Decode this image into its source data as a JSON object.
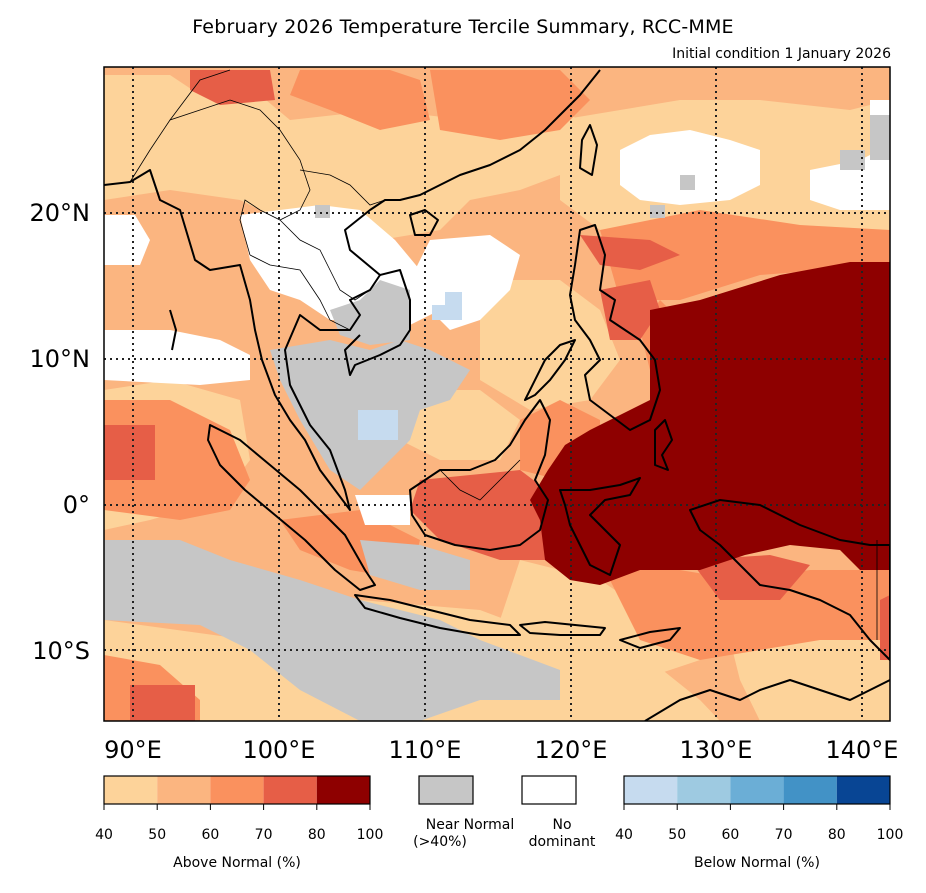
{
  "title": "February 2026 Temperature Tercile Summary, RCC-MME",
  "subtitle": "Initial condition 1 January 2026",
  "map": {
    "lon_range": [
      88,
      142
    ],
    "lat_range": [
      -15,
      30
    ],
    "lon_gridlines": [
      90,
      100,
      110,
      120,
      130,
      140
    ],
    "lat_gridlines": [
      -10,
      0,
      10,
      20
    ],
    "lon_labels": [
      "90°E",
      "100°E",
      "110°E",
      "120°E",
      "130°E",
      "140°E"
    ],
    "lat_labels": [
      "10°S",
      "0°",
      "10°N",
      "20°N"
    ]
  },
  "chart_data": {
    "type": "heatmap",
    "title": "February 2026 Temperature Tercile Summary, RCC-MME",
    "categories": [
      "Above Normal",
      "Near Normal (>40%)",
      "No dominant",
      "Below Normal"
    ],
    "regions_most_likely_above_normal_80_100": "Philippines, eastern Indonesia, New Guinea, western Pacific",
    "regions_near_normal": "southern Cambodia/Viet Nam, Gulf of Thailand, Java Sea, eastern Indian Ocean",
    "regions_no_dominant": "Thailand, Laos, Bay of Bengal coast, parts of South China Sea",
    "regions_below_normal_40_50": "small patches over Laos and Gulf of Thailand"
  },
  "legend": {
    "above": {
      "label": "Above Normal (%)",
      "ticks": [
        "40",
        "50",
        "60",
        "70",
        "80",
        "100"
      ],
      "colors": [
        "#fdd39a",
        "#fbb580",
        "#fa915e",
        "#e65e47",
        "#8e0000"
      ]
    },
    "near_normal": {
      "label_line1": "Near Normal",
      "label_line2": "(>40%)",
      "color": "#c6c6c6"
    },
    "no_dominant": {
      "label_line1": "No",
      "label_line2": "dominant",
      "color": "#ffffff"
    },
    "below": {
      "label": "Below Normal (%)",
      "ticks": [
        "40",
        "50",
        "60",
        "70",
        "80",
        "100"
      ],
      "colors": [
        "#c6dbef",
        "#9ecae1",
        "#6baed6",
        "#4292c6",
        "#084594"
      ]
    }
  },
  "colors": {
    "a1": "#fdd39a",
    "a2": "#fbb580",
    "a3": "#fa915e",
    "a4": "#e65e47",
    "a5": "#8e0000",
    "nn": "#c6c6c6",
    "nd": "#ffffff",
    "b1": "#c6dbef"
  }
}
